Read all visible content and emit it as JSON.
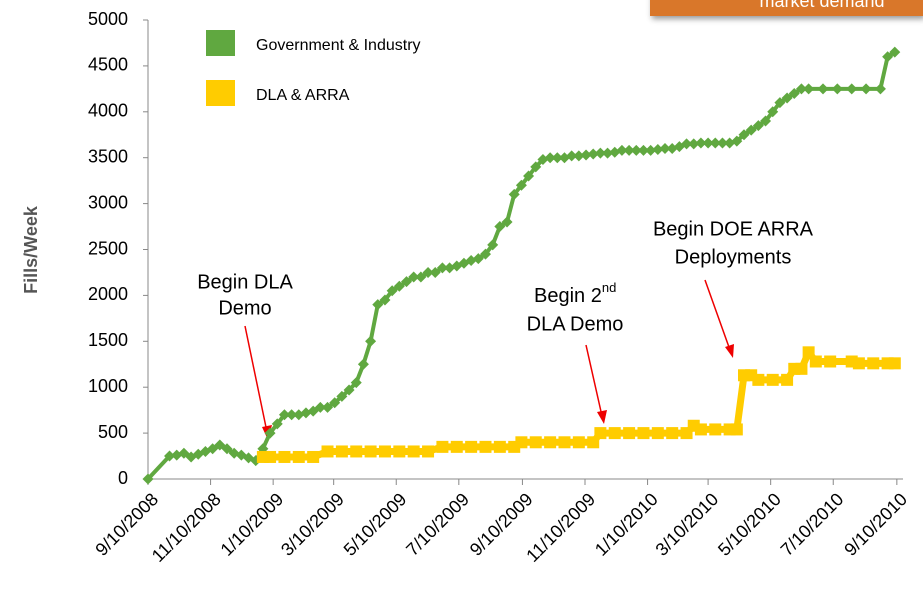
{
  "chart_data": {
    "type": "line",
    "ylabel": "Fills/Week",
    "banner": "market demand",
    "annotations": [
      {
        "lines": [
          "Begin DLA",
          "Demo"
        ]
      },
      {
        "lines": [
          "Begin 2",
          "nd",
          "DLA Demo"
        ]
      },
      {
        "lines": [
          "Begin DOE ARRA",
          "Deployments"
        ]
      }
    ],
    "xlim": [
      "2008-09-10",
      "2010-09-16"
    ],
    "xticks": [
      {
        "value": "2008-09-10",
        "label": "9/10/2008"
      },
      {
        "value": "2008-11-10",
        "label": "11/10/2008"
      },
      {
        "value": "2009-01-10",
        "label": "1/10/2009"
      },
      {
        "value": "2009-03-10",
        "label": "3/10/2009"
      },
      {
        "value": "2009-05-10",
        "label": "5/10/2009"
      },
      {
        "value": "2009-07-10",
        "label": "7/10/2009"
      },
      {
        "value": "2009-09-10",
        "label": "9/10/2009"
      },
      {
        "value": "2009-11-10",
        "label": "11/10/2009"
      },
      {
        "value": "2010-01-10",
        "label": "1/10/2010"
      },
      {
        "value": "2010-03-10",
        "label": "3/10/2010"
      },
      {
        "value": "2010-05-10",
        "label": "5/10/2010"
      },
      {
        "value": "2010-07-10",
        "label": "7/10/2010"
      },
      {
        "value": "2010-09-10",
        "label": "9/10/2010"
      }
    ],
    "ylim": [
      0,
      5000
    ],
    "yticks": [
      0,
      500,
      1000,
      1500,
      2000,
      2500,
      3000,
      3500,
      4000,
      4500,
      5000
    ],
    "grid": false,
    "legend": "upper left",
    "series": [
      {
        "name": "Government & Industry",
        "color": "#60a840",
        "x": [
          "2008-09-10",
          "2008-10-01",
          "2008-10-08",
          "2008-10-15",
          "2008-10-22",
          "2008-10-29",
          "2008-11-05",
          "2008-11-12",
          "2008-11-19",
          "2008-11-26",
          "2008-12-03",
          "2008-12-10",
          "2008-12-17",
          "2008-12-24",
          "2008-12-31",
          "2009-01-07",
          "2009-01-14",
          "2009-01-21",
          "2009-01-28",
          "2009-02-04",
          "2009-02-11",
          "2009-02-18",
          "2009-02-25",
          "2009-03-04",
          "2009-03-11",
          "2009-03-18",
          "2009-03-25",
          "2009-04-01",
          "2009-04-08",
          "2009-04-15",
          "2009-04-22",
          "2009-04-29",
          "2009-05-06",
          "2009-05-13",
          "2009-05-20",
          "2009-05-27",
          "2009-06-03",
          "2009-06-10",
          "2009-06-17",
          "2009-06-24",
          "2009-07-01",
          "2009-07-08",
          "2009-07-15",
          "2009-07-22",
          "2009-07-29",
          "2009-08-05",
          "2009-08-12",
          "2009-08-19",
          "2009-08-26",
          "2009-09-02",
          "2009-09-09",
          "2009-09-16",
          "2009-09-23",
          "2009-09-30",
          "2009-10-07",
          "2009-10-14",
          "2009-10-21",
          "2009-10-28",
          "2009-11-04",
          "2009-11-11",
          "2009-11-18",
          "2009-11-25",
          "2009-12-02",
          "2009-12-09",
          "2009-12-16",
          "2009-12-23",
          "2009-12-30",
          "2010-01-06",
          "2010-01-13",
          "2010-01-20",
          "2010-01-27",
          "2010-02-03",
          "2010-02-10",
          "2010-02-17",
          "2010-02-24",
          "2010-03-03",
          "2010-03-10",
          "2010-03-17",
          "2010-03-24",
          "2010-03-31",
          "2010-04-07",
          "2010-04-14",
          "2010-04-21",
          "2010-04-28",
          "2010-05-05",
          "2010-05-12",
          "2010-05-19",
          "2010-05-26",
          "2010-06-02",
          "2010-06-09",
          "2010-06-16",
          "2010-06-30",
          "2010-07-14",
          "2010-07-28",
          "2010-08-11",
          "2010-08-25",
          "2010-09-01",
          "2010-09-08"
        ],
        "values": [
          0,
          250,
          260,
          280,
          240,
          270,
          300,
          330,
          370,
          330,
          280,
          260,
          230,
          200,
          330,
          500,
          600,
          700,
          700,
          700,
          720,
          740,
          780,
          780,
          830,
          900,
          970,
          1050,
          1250,
          1500,
          1900,
          1950,
          2050,
          2100,
          2150,
          2200,
          2200,
          2250,
          2250,
          2300,
          2300,
          2320,
          2350,
          2380,
          2400,
          2450,
          2550,
          2750,
          2800,
          3100,
          3200,
          3300,
          3400,
          3480,
          3500,
          3500,
          3500,
          3520,
          3520,
          3530,
          3540,
          3550,
          3550,
          3560,
          3580,
          3580,
          3580,
          3580,
          3580,
          3590,
          3600,
          3600,
          3620,
          3650,
          3650,
          3660,
          3660,
          3660,
          3660,
          3660,
          3680,
          3750,
          3800,
          3850,
          3900,
          4000,
          4100,
          4150,
          4200,
          4250,
          4250,
          4250,
          4250,
          4250,
          4250,
          4250,
          4600,
          4650
        ]
      },
      {
        "name": "DLA & ARRA",
        "color": "#ffcc00",
        "x": [
          "2008-12-31",
          "2009-01-07",
          "2009-01-21",
          "2009-02-04",
          "2009-02-18",
          "2009-03-04",
          "2009-03-18",
          "2009-04-01",
          "2009-04-15",
          "2009-04-29",
          "2009-05-13",
          "2009-05-27",
          "2009-06-10",
          "2009-06-24",
          "2009-07-08",
          "2009-07-22",
          "2009-08-05",
          "2009-08-19",
          "2009-09-02",
          "2009-09-09",
          "2009-09-23",
          "2009-10-07",
          "2009-10-21",
          "2009-11-04",
          "2009-11-18",
          "2009-11-25",
          "2009-12-09",
          "2009-12-23",
          "2010-01-06",
          "2010-01-20",
          "2010-02-03",
          "2010-02-17",
          "2010-02-24",
          "2010-03-03",
          "2010-03-17",
          "2010-03-31",
          "2010-04-07",
          "2010-04-14",
          "2010-04-21",
          "2010-04-28",
          "2010-05-12",
          "2010-05-26",
          "2010-06-02",
          "2010-06-09",
          "2010-06-16",
          "2010-06-23",
          "2010-07-07",
          "2010-07-28",
          "2010-08-04",
          "2010-08-18",
          "2010-09-01",
          "2010-09-08"
        ],
        "values": [
          240,
          240,
          240,
          240,
          240,
          300,
          300,
          300,
          300,
          300,
          300,
          300,
          300,
          350,
          350,
          350,
          350,
          350,
          350,
          400,
          400,
          400,
          400,
          400,
          400,
          500,
          500,
          500,
          500,
          500,
          500,
          500,
          580,
          540,
          540,
          540,
          540,
          1130,
          1130,
          1080,
          1080,
          1080,
          1200,
          1200,
          1380,
          1280,
          1280,
          1280,
          1260,
          1260,
          1260,
          1260
        ]
      }
    ]
  }
}
